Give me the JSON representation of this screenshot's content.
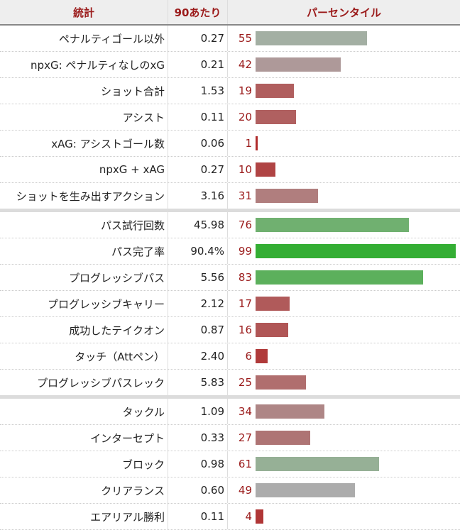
{
  "header": {
    "stat": "統計",
    "per90": "90あたり",
    "percentile": "パーセンタイル"
  },
  "groups": [
    [
      {
        "label": "ペナルティゴール以外",
        "value": "0.27",
        "percentile": 55,
        "color": "#a3afa3"
      },
      {
        "label": "npxG: ペナルティなしのxG",
        "value": "0.21",
        "percentile": 42,
        "color": "#ae9999"
      },
      {
        "label": "ショット合計",
        "value": "1.53",
        "percentile": 19,
        "color": "#b05e5e"
      },
      {
        "label": "アシスト",
        "value": "0.11",
        "percentile": 20,
        "color": "#b06060"
      },
      {
        "label": "xAG: アシストゴール数",
        "value": "0.06",
        "percentile": 1,
        "color": "#b02c2c"
      },
      {
        "label": "npxG + xAG",
        "value": "0.27",
        "percentile": 10,
        "color": "#b04444"
      },
      {
        "label": "ショットを生み出すアクション",
        "value": "3.16",
        "percentile": 31,
        "color": "#b07e7e"
      }
    ],
    [
      {
        "label": "パス試行回数",
        "value": "45.98",
        "percentile": 76,
        "color": "#70b070"
      },
      {
        "label": "パス完了率",
        "value": "90.4%",
        "percentile": 99,
        "color": "#34ae34"
      },
      {
        "label": "プログレッシブパス",
        "value": "5.56",
        "percentile": 83,
        "color": "#5cb05c"
      },
      {
        "label": "プログレッシブキャリー",
        "value": "2.12",
        "percentile": 17,
        "color": "#b05a5a"
      },
      {
        "label": "成功したテイクオン",
        "value": "0.87",
        "percentile": 16,
        "color": "#b05656"
      },
      {
        "label": "タッチ（Attペン）",
        "value": "2.40",
        "percentile": 6,
        "color": "#b03a3a"
      },
      {
        "label": "プログレッシブパスレック",
        "value": "5.83",
        "percentile": 25,
        "color": "#b06e6e"
      }
    ],
    [
      {
        "label": "タックル",
        "value": "1.09",
        "percentile": 34,
        "color": "#ae8686"
      },
      {
        "label": "インターセプト",
        "value": "0.33",
        "percentile": 27,
        "color": "#ae7474"
      },
      {
        "label": "ブロック",
        "value": "0.98",
        "percentile": 61,
        "color": "#96b096"
      },
      {
        "label": "クリアランス",
        "value": "0.60",
        "percentile": 49,
        "color": "#acacac"
      },
      {
        "label": "エアリアル勝利",
        "value": "0.11",
        "percentile": 4,
        "color": "#b03636"
      }
    ]
  ]
}
